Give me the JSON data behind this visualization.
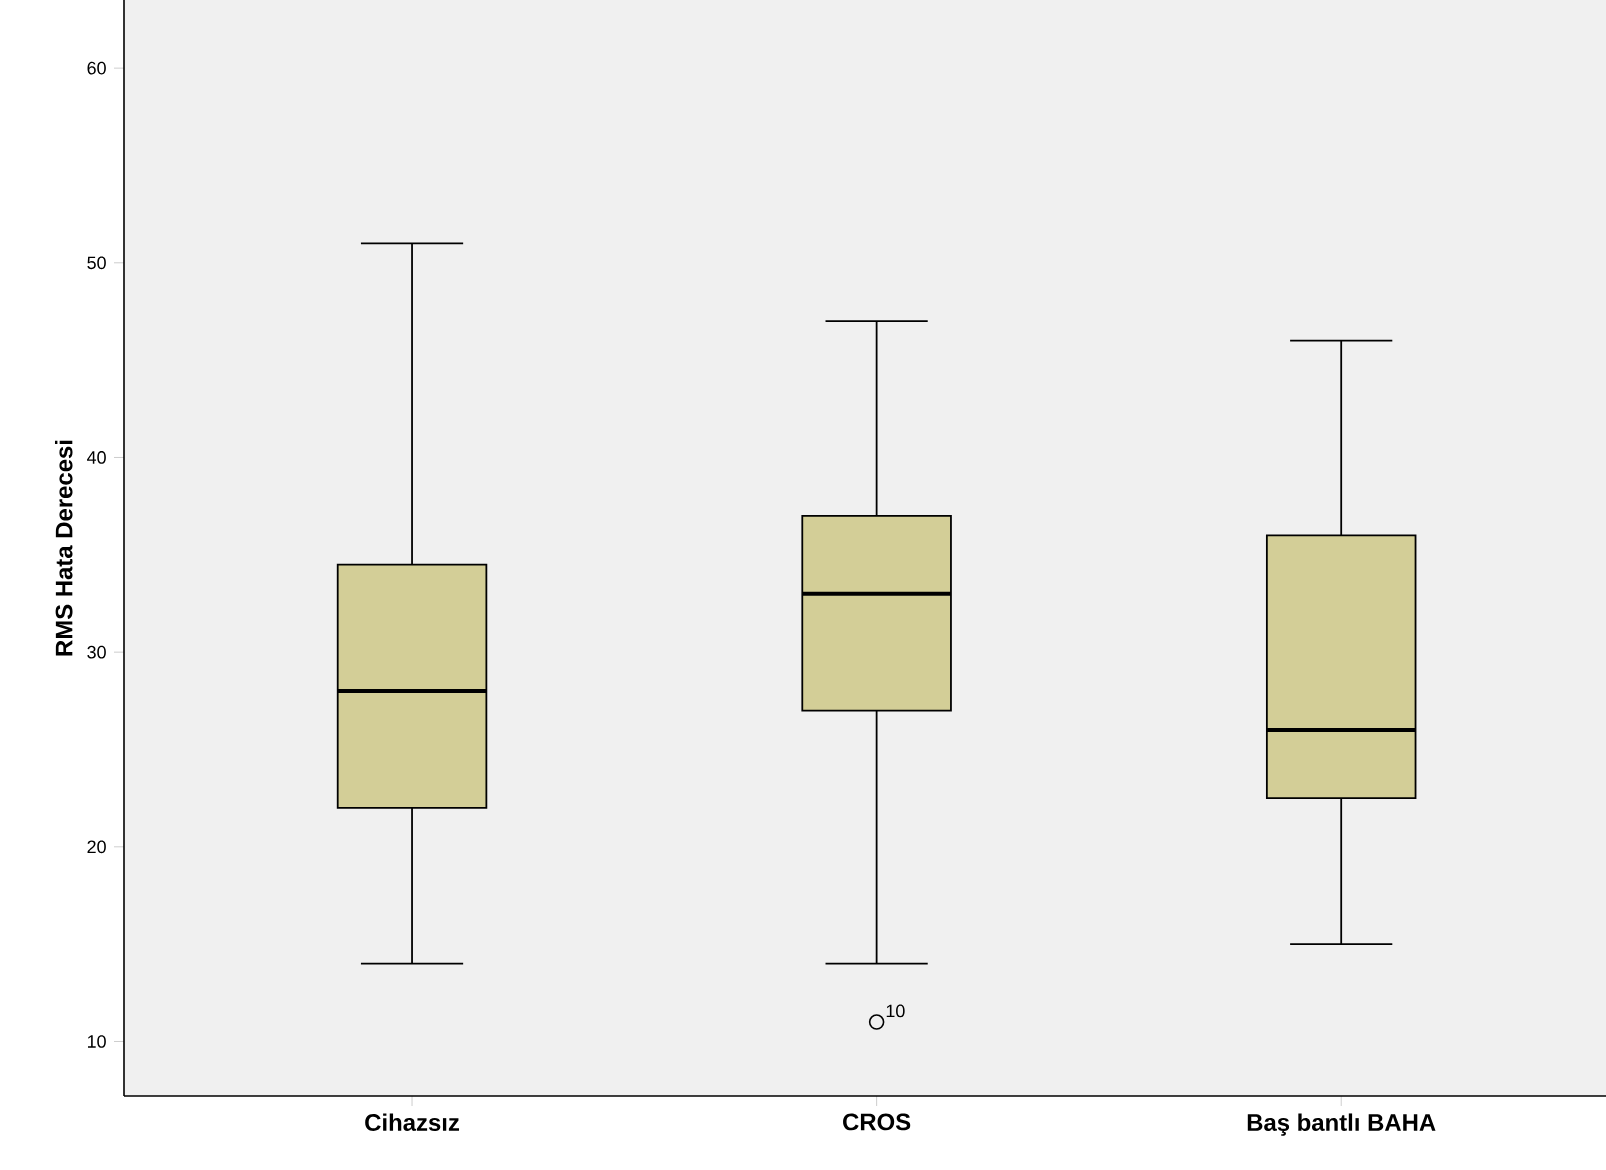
{
  "chart_data": {
    "type": "box",
    "ylabel": "RMS Hata Derecesi",
    "categories": [
      "Cihazsız",
      "CROS",
      "Baş bantlı BAHA"
    ],
    "color": "#d3ce97",
    "boxes": [
      {
        "low": 14,
        "q1": 22,
        "median": 28,
        "q3": 34.5,
        "high": 51
      },
      {
        "low": 14,
        "q1": 27,
        "median": 33,
        "q3": 37,
        "high": 47,
        "outliers": [
          11
        ]
      },
      {
        "low": 15,
        "q1": 22.5,
        "median": 26,
        "q3": 36,
        "high": 46
      }
    ],
    "annotations": [
      "10"
    ],
    "ylim": [
      7.2,
      63.5
    ],
    "yticks": [
      10,
      20,
      30,
      40,
      50,
      60
    ],
    "grid": false
  }
}
